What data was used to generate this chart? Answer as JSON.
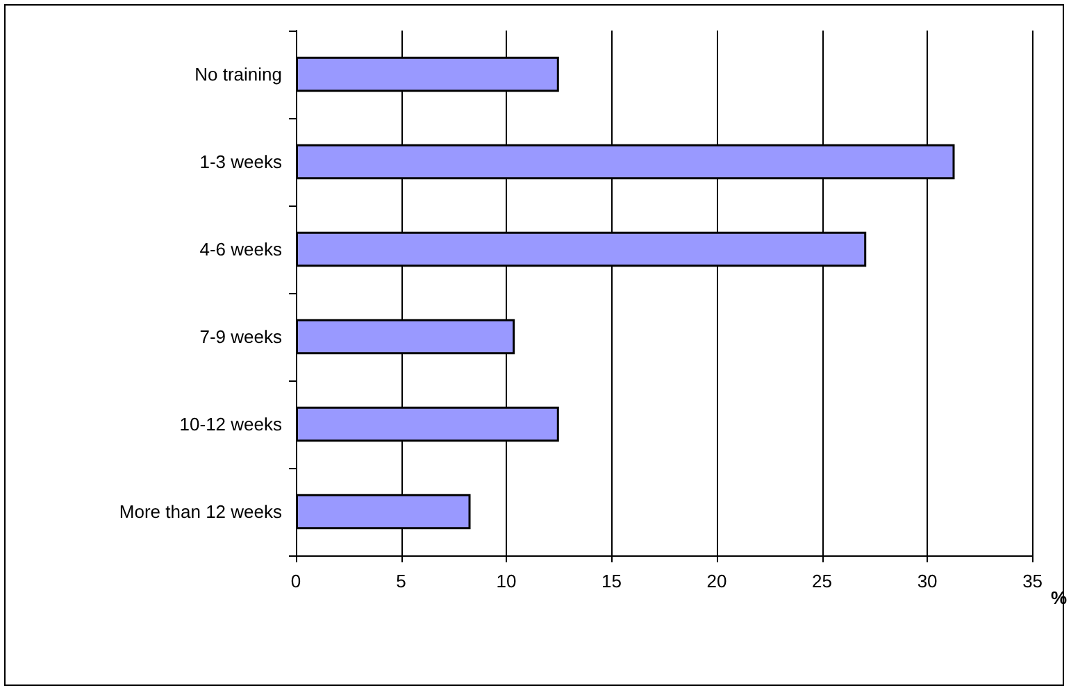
{
  "chart_data": {
    "type": "bar",
    "orientation": "horizontal",
    "xlabel": "%",
    "categories": [
      "No training",
      "1-3 weeks",
      "4-6 weeks",
      "7-9 weeks",
      "10-12 weeks",
      "More than 12 weeks"
    ],
    "values": [
      12.5,
      31.3,
      27.1,
      10.4,
      12.5,
      8.3
    ],
    "color": "#9999ff",
    "xlim": [
      0,
      35
    ],
    "xticks": [
      0,
      5,
      10,
      15,
      20,
      25,
      30,
      35
    ],
    "grid": "x"
  }
}
